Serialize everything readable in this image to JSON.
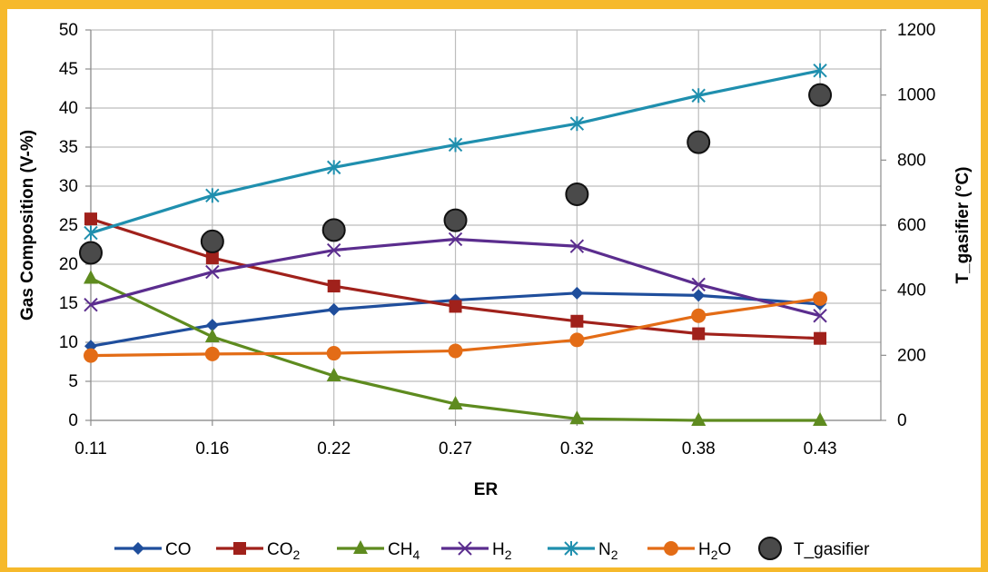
{
  "chart_data": {
    "type": "line",
    "xlabel": "ER",
    "ylabel": "Gas Composition (V-%)",
    "y2label": "T_gasifier (°C)",
    "categories": [
      "0.11",
      "0.16",
      "0.22",
      "0.27",
      "0.32",
      "0.38",
      "0.43"
    ],
    "ylim": [
      0,
      50
    ],
    "y2lim": [
      0,
      1200
    ],
    "yticks": [
      "0",
      "5",
      "10",
      "15",
      "20",
      "25",
      "30",
      "35",
      "40",
      "45",
      "50"
    ],
    "y2ticks": [
      "0",
      "200",
      "400",
      "600",
      "800",
      "1000",
      "1200"
    ],
    "grid": true,
    "legend_position": "bottom",
    "series": [
      {
        "name": "CO",
        "sub": "",
        "axis": "left",
        "marker": "diamond",
        "color": "#1f4e9c",
        "line": true,
        "values": [
          9.5,
          12.2,
          14.2,
          15.4,
          16.3,
          16.0,
          14.9
        ]
      },
      {
        "name": "CO",
        "sub": "2",
        "axis": "left",
        "marker": "square",
        "color": "#a0211b",
        "line": true,
        "values": [
          25.8,
          20.8,
          17.2,
          14.6,
          12.7,
          11.1,
          10.5
        ]
      },
      {
        "name": "CH",
        "sub": "4",
        "axis": "left",
        "marker": "triangle",
        "color": "#5e8b1f",
        "line": true,
        "values": [
          18.2,
          10.7,
          5.7,
          2.1,
          0.2,
          0.0,
          0.0
        ]
      },
      {
        "name": "H",
        "sub": "2",
        "axis": "left",
        "marker": "x",
        "color": "#5b2d8e",
        "line": true,
        "values": [
          14.8,
          19.0,
          21.8,
          23.2,
          22.3,
          17.4,
          13.4
        ]
      },
      {
        "name": "N",
        "sub": "2",
        "axis": "left",
        "marker": "star",
        "color": "#1f8fae",
        "line": true,
        "values": [
          24.0,
          28.8,
          32.4,
          35.3,
          38.0,
          41.6,
          44.8
        ]
      },
      {
        "name": "H",
        "sub": "2",
        "post": "O",
        "axis": "left",
        "marker": "circle",
        "color": "#e36c16",
        "line": true,
        "values": [
          8.3,
          8.5,
          8.6,
          8.9,
          10.3,
          13.4,
          15.6
        ]
      },
      {
        "name": "T_gasifier",
        "sub": "",
        "axis": "right",
        "marker": "bigcircle",
        "color": "#4a4a4a",
        "line": false,
        "values": [
          515,
          550,
          585,
          615,
          695,
          855,
          1000
        ]
      }
    ]
  }
}
